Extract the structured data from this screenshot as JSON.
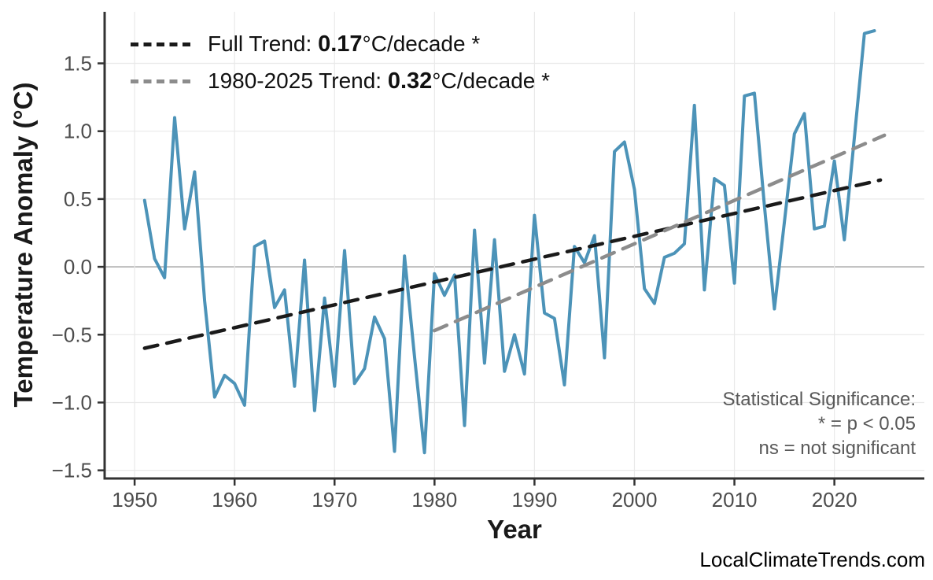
{
  "page": {
    "background": "#ffffff"
  },
  "watermark": "LocalClimateTrends.com",
  "legend": {
    "items": [
      {
        "prefix": "Full Trend: ",
        "value": "0.17",
        "suffix": "°C/decade *",
        "color": "#1a1a1a"
      },
      {
        "prefix": "1980-2025 Trend: ",
        "value": "0.32",
        "suffix": "°C/decade *",
        "color": "#8c8c8c"
      }
    ]
  },
  "annotation": {
    "lines": [
      "Statistical Significance:",
      "* = p < 0.05",
      "ns = not significant"
    ]
  },
  "chart_data": {
    "type": "line",
    "title": "",
    "xlabel": "Year",
    "ylabel": "Temperature Anomaly (°C)",
    "xlim": [
      1947,
      2029
    ],
    "ylim": [
      -1.56,
      1.88
    ],
    "grid": true,
    "legend_position": "top-left",
    "colors": {
      "grid": "#e9e9e9",
      "zero_line": "#b0b0b0",
      "spine": "#333333",
      "tick_label": "#4d4d4d"
    },
    "x_ticks": [
      {
        "v": 1950,
        "label": "1950"
      },
      {
        "v": 1960,
        "label": "1960"
      },
      {
        "v": 1970,
        "label": "1970"
      },
      {
        "v": 1980,
        "label": "1980"
      },
      {
        "v": 1990,
        "label": "1990"
      },
      {
        "v": 2000,
        "label": "2000"
      },
      {
        "v": 2010,
        "label": "2010"
      },
      {
        "v": 2020,
        "label": "2020"
      }
    ],
    "y_ticks": [
      {
        "v": 1.5,
        "label": "1.5"
      },
      {
        "v": 1.0,
        "label": "1.0"
      },
      {
        "v": 0.5,
        "label": "0.5"
      },
      {
        "v": 0.0,
        "label": "0.0"
      },
      {
        "v": -0.5,
        "label": "−0.5"
      },
      {
        "v": -1.0,
        "label": "−1.0"
      },
      {
        "v": -1.5,
        "label": "−1.5"
      }
    ],
    "series": [
      {
        "name": "annual-temperature-anomaly",
        "color": "#4C93B8",
        "width": 4,
        "dash": null,
        "points": [
          [
            1951,
            0.49
          ],
          [
            1952,
            0.06
          ],
          [
            1953,
            -0.08
          ],
          [
            1954,
            1.1
          ],
          [
            1955,
            0.28
          ],
          [
            1956,
            0.7
          ],
          [
            1957,
            -0.25
          ],
          [
            1958,
            -0.96
          ],
          [
            1959,
            -0.8
          ],
          [
            1960,
            -0.86
          ],
          [
            1961,
            -1.02
          ],
          [
            1962,
            0.15
          ],
          [
            1963,
            0.19
          ],
          [
            1964,
            -0.3
          ],
          [
            1965,
            -0.17
          ],
          [
            1966,
            -0.88
          ],
          [
            1967,
            0.05
          ],
          [
            1968,
            -1.06
          ],
          [
            1969,
            -0.23
          ],
          [
            1970,
            -0.88
          ],
          [
            1971,
            0.12
          ],
          [
            1972,
            -0.86
          ],
          [
            1973,
            -0.75
          ],
          [
            1974,
            -0.37
          ],
          [
            1975,
            -0.53
          ],
          [
            1976,
            -1.36
          ],
          [
            1977,
            0.08
          ],
          [
            1978,
            -0.66
          ],
          [
            1979,
            -1.37
          ],
          [
            1980,
            -0.05
          ],
          [
            1981,
            -0.21
          ],
          [
            1982,
            -0.06
          ],
          [
            1983,
            -1.17
          ],
          [
            1984,
            0.27
          ],
          [
            1985,
            -0.71
          ],
          [
            1986,
            0.2
          ],
          [
            1987,
            -0.77
          ],
          [
            1988,
            -0.5
          ],
          [
            1989,
            -0.79
          ],
          [
            1990,
            0.38
          ],
          [
            1991,
            -0.34
          ],
          [
            1992,
            -0.38
          ],
          [
            1993,
            -0.87
          ],
          [
            1994,
            0.15
          ],
          [
            1995,
            0.03
          ],
          [
            1996,
            0.23
          ],
          [
            1997,
            -0.67
          ],
          [
            1998,
            0.85
          ],
          [
            1999,
            0.92
          ],
          [
            2000,
            0.57
          ],
          [
            2001,
            -0.16
          ],
          [
            2002,
            -0.27
          ],
          [
            2003,
            0.07
          ],
          [
            2004,
            0.1
          ],
          [
            2005,
            0.17
          ],
          [
            2006,
            1.19
          ],
          [
            2007,
            -0.17
          ],
          [
            2008,
            0.65
          ],
          [
            2009,
            0.6
          ],
          [
            2010,
            -0.12
          ],
          [
            2011,
            1.26
          ],
          [
            2012,
            1.28
          ],
          [
            2013,
            0.45
          ],
          [
            2014,
            -0.31
          ],
          [
            2015,
            0.33
          ],
          [
            2016,
            0.98
          ],
          [
            2017,
            1.13
          ],
          [
            2018,
            0.28
          ],
          [
            2019,
            0.3
          ],
          [
            2020,
            0.78
          ],
          [
            2021,
            0.2
          ],
          [
            2022,
            0.95
          ],
          [
            2023,
            1.72
          ],
          [
            2024,
            1.74
          ]
        ]
      },
      {
        "name": "full-trend-line",
        "color": "#1a1a1a",
        "width": 4.5,
        "dash": "17 12",
        "points": [
          [
            1951,
            -0.6
          ],
          [
            2024.6,
            0.64
          ]
        ]
      },
      {
        "name": "trend-1980-2025-line",
        "color": "#8c8c8c",
        "width": 4.5,
        "dash": "17 12",
        "points": [
          [
            1980,
            -0.47
          ],
          [
            2025,
            0.97
          ]
        ]
      }
    ]
  }
}
